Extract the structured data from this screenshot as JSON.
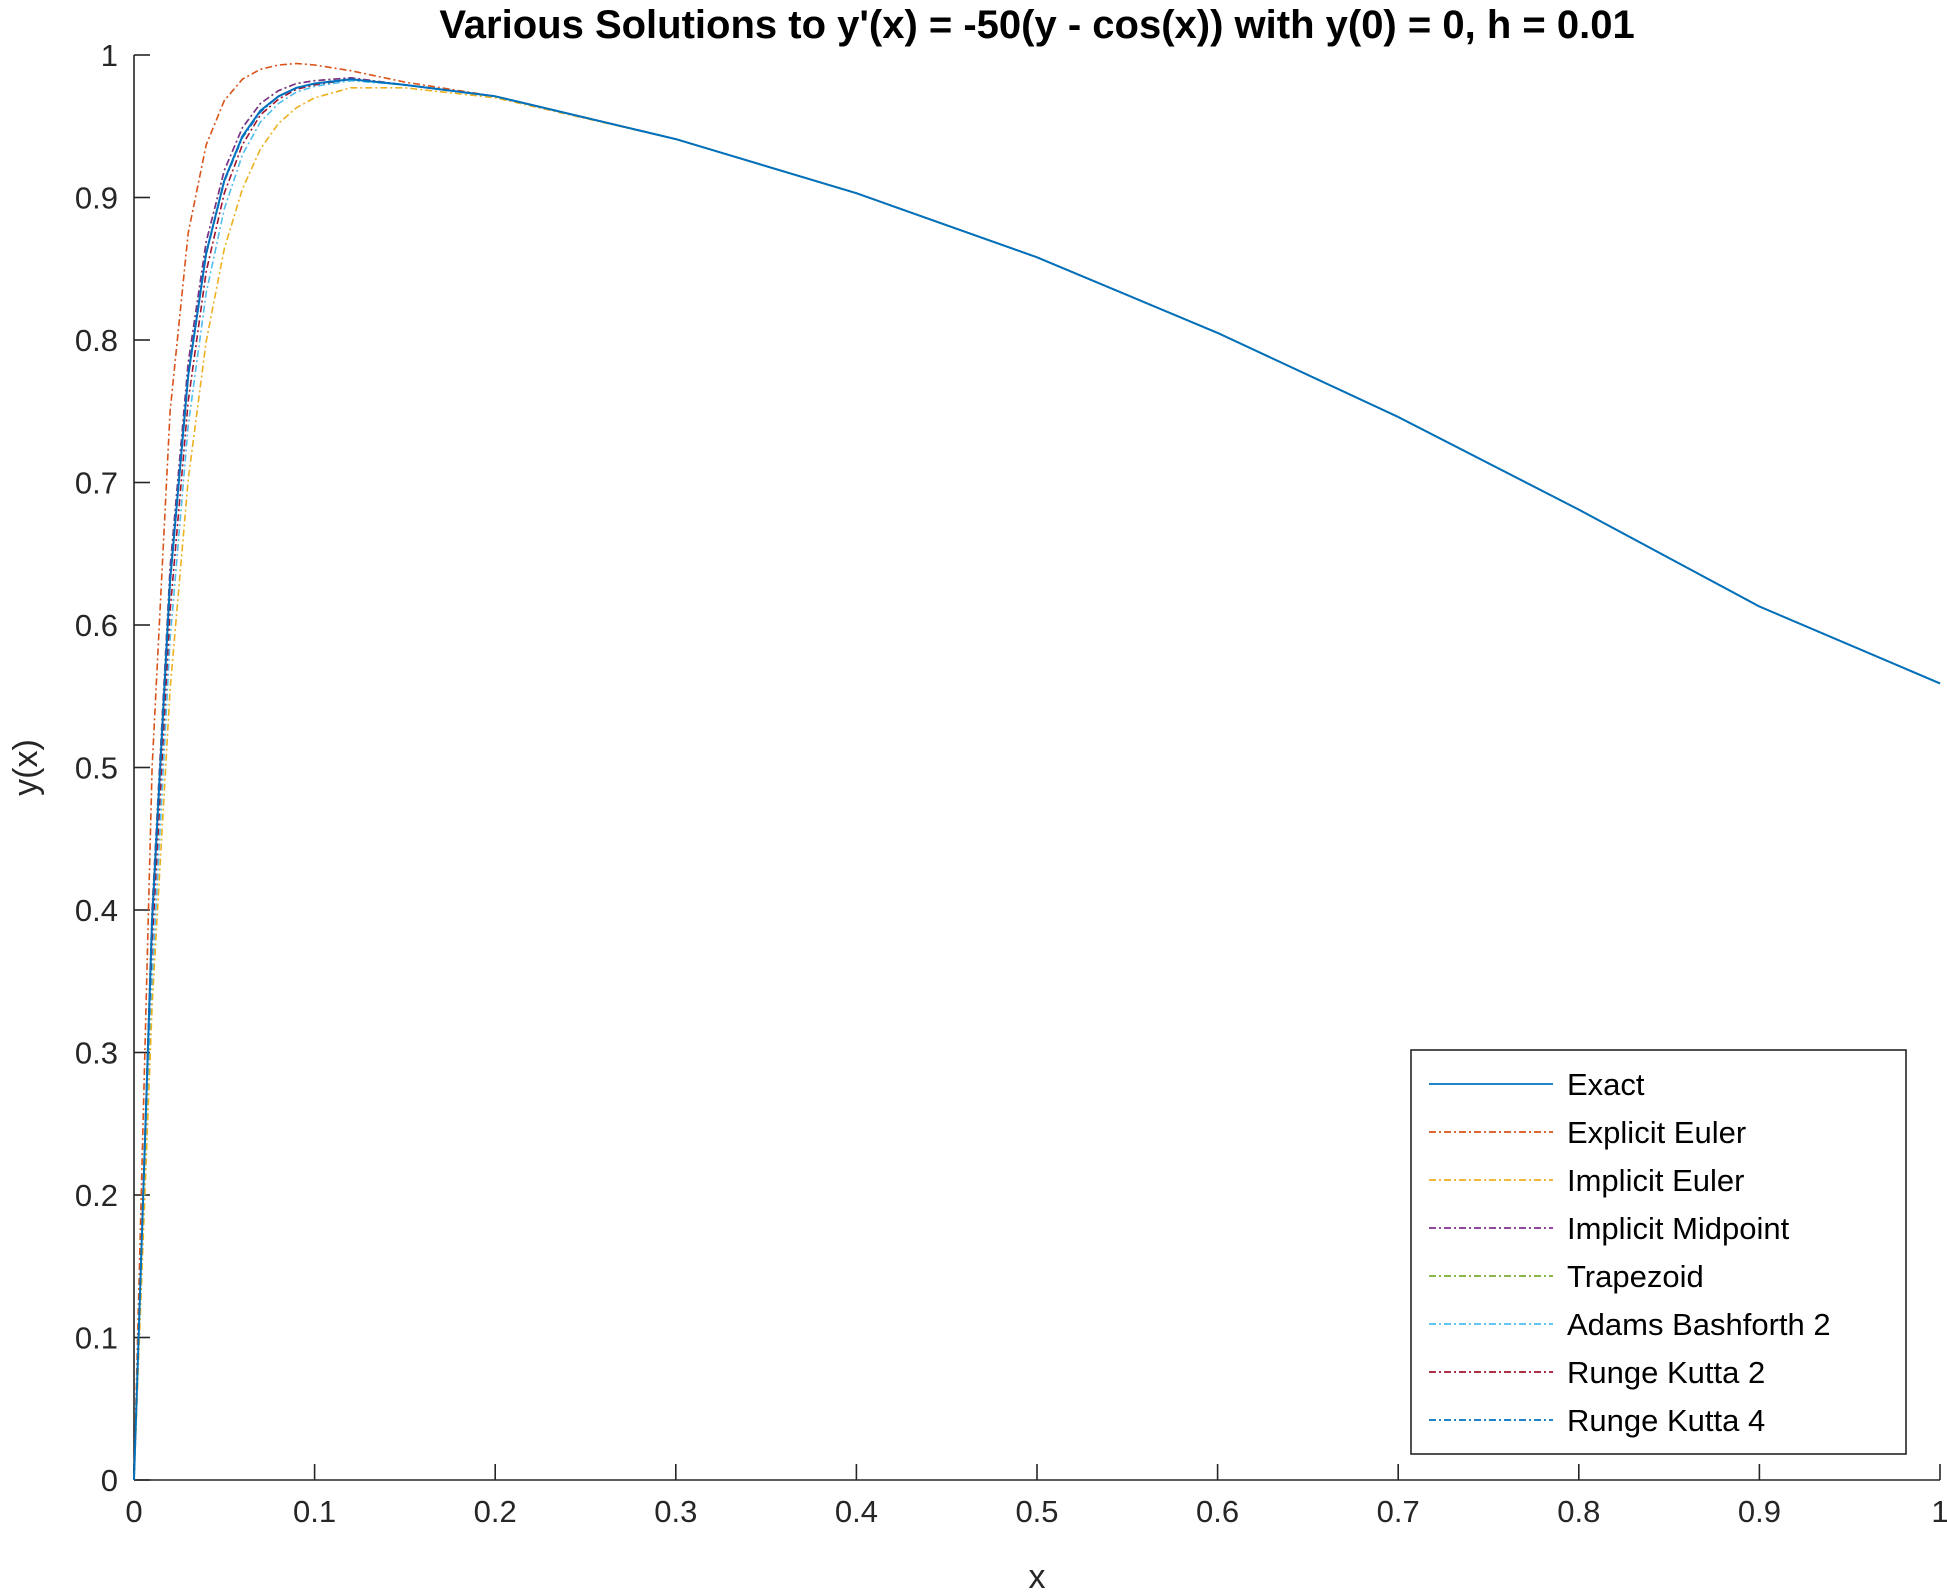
{
  "chart_data": {
    "type": "line",
    "title": "Various Solutions to y'(x) = -50(y - cos(x)) with y(0) = 0, h = 0.01",
    "xlabel": "x",
    "ylabel": "y(x)",
    "xlim": [
      0,
      1
    ],
    "ylim": [
      0,
      1
    ],
    "xticks": [
      0,
      0.1,
      0.2,
      0.3,
      0.4,
      0.5,
      0.6,
      0.7,
      0.8,
      0.9,
      1
    ],
    "xtick_labels": [
      "0",
      "0.1",
      "0.2",
      "0.3",
      "0.4",
      "0.5",
      "0.6",
      "0.7",
      "0.8",
      "0.9",
      "1"
    ],
    "yticks": [
      0,
      0.1,
      0.2,
      0.3,
      0.4,
      0.5,
      0.6,
      0.7,
      0.8,
      0.9,
      1
    ],
    "ytick_labels": [
      "0",
      "0.1",
      "0.2",
      "0.3",
      "0.4",
      "0.5",
      "0.6",
      "0.7",
      "0.8",
      "0.9",
      "1"
    ],
    "grid": false,
    "legend_position": "bottom-right",
    "x": [
      0,
      0.01,
      0.02,
      0.03,
      0.04,
      0.05,
      0.06,
      0.07,
      0.08,
      0.09,
      0.1,
      0.12,
      0.15,
      0.2,
      0.3,
      0.4,
      0.5,
      0.6,
      0.7,
      0.8,
      0.9,
      1.0
    ],
    "series": [
      {
        "name": "Exact",
        "color": "#0072BD",
        "dash": "solid",
        "values": [
          0,
          0.393,
          0.631,
          0.775,
          0.861,
          0.912,
          0.943,
          0.961,
          0.971,
          0.977,
          0.98,
          0.983,
          0.979,
          0.971,
          0.941,
          0.903,
          0.858,
          0.805,
          0.746,
          0.681,
          0.613,
          0.559
        ]
      },
      {
        "name": "Explicit Euler",
        "color": "#D95319",
        "dash": "dashdot",
        "values": [
          0,
          0.5,
          0.75,
          0.875,
          0.937,
          0.968,
          0.983,
          0.99,
          0.993,
          0.994,
          0.993,
          0.989,
          0.981,
          0.971,
          0.941,
          0.903,
          0.858,
          0.805,
          0.746,
          0.681,
          0.613,
          0.559
        ]
      },
      {
        "name": "Implicit Euler",
        "color": "#EDB120",
        "dash": "dashdot",
        "values": [
          0,
          0.333,
          0.555,
          0.702,
          0.799,
          0.864,
          0.906,
          0.934,
          0.952,
          0.963,
          0.97,
          0.977,
          0.977,
          0.97,
          0.941,
          0.903,
          0.858,
          0.805,
          0.746,
          0.681,
          0.613,
          0.559
        ]
      },
      {
        "name": "Implicit Midpoint",
        "color": "#7E2F8E",
        "dash": "dashdot",
        "values": [
          0,
          0.4,
          0.64,
          0.784,
          0.869,
          0.919,
          0.949,
          0.966,
          0.975,
          0.98,
          0.982,
          0.984,
          0.979,
          0.971,
          0.941,
          0.903,
          0.858,
          0.805,
          0.746,
          0.681,
          0.613,
          0.559
        ]
      },
      {
        "name": "Trapezoid",
        "color": "#77AC30",
        "dash": "dashdot",
        "values": [
          0,
          0.4,
          0.64,
          0.784,
          0.869,
          0.919,
          0.949,
          0.966,
          0.975,
          0.98,
          0.982,
          0.984,
          0.979,
          0.971,
          0.941,
          0.903,
          0.858,
          0.805,
          0.746,
          0.681,
          0.613,
          0.559
        ]
      },
      {
        "name": "Adams Bashforth 2",
        "color": "#4DBEEE",
        "dash": "dashdot",
        "values": [
          0,
          0.35,
          0.59,
          0.74,
          0.833,
          0.892,
          0.93,
          0.953,
          0.966,
          0.974,
          0.978,
          0.982,
          0.979,
          0.971,
          0.941,
          0.903,
          0.858,
          0.805,
          0.746,
          0.681,
          0.613,
          0.559
        ]
      },
      {
        "name": "Runge Kutta 2",
        "color": "#A2142F",
        "dash": "dashdot",
        "values": [
          0,
          0.375,
          0.61,
          0.757,
          0.848,
          0.903,
          0.937,
          0.958,
          0.969,
          0.976,
          0.979,
          0.983,
          0.979,
          0.971,
          0.941,
          0.903,
          0.858,
          0.805,
          0.746,
          0.681,
          0.613,
          0.559
        ]
      },
      {
        "name": "Runge Kutta 4",
        "color": "#0072BD",
        "dash": "dashdot",
        "values": [
          0,
          0.392,
          0.63,
          0.774,
          0.86,
          0.911,
          0.942,
          0.96,
          0.971,
          0.977,
          0.98,
          0.983,
          0.979,
          0.971,
          0.941,
          0.903,
          0.858,
          0.805,
          0.746,
          0.681,
          0.613,
          0.559
        ]
      }
    ]
  }
}
